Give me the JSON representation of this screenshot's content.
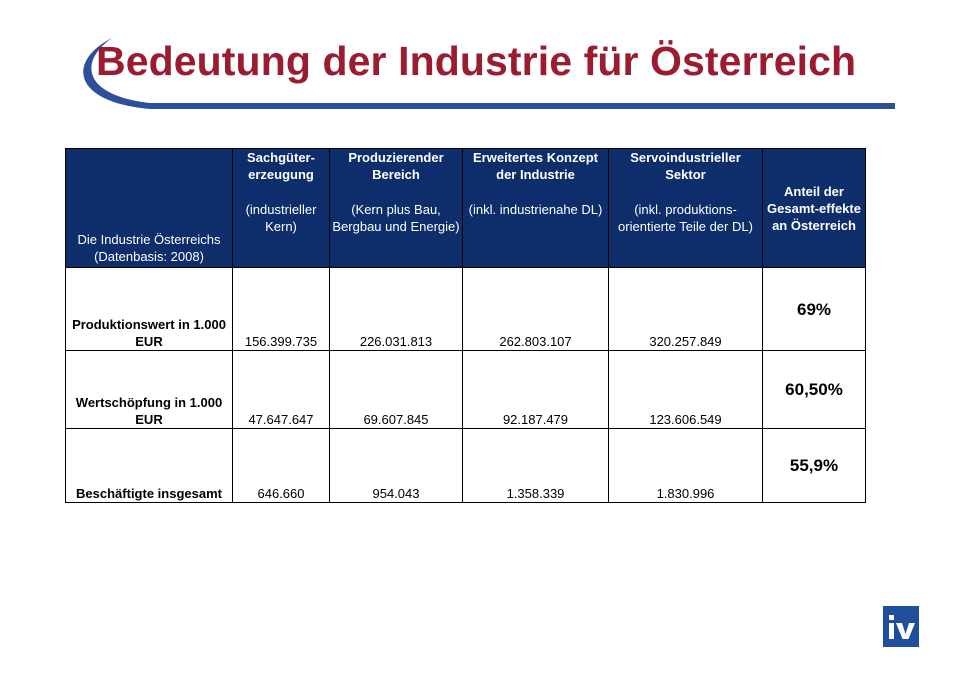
{
  "title": "Bedeutung der Industrie für Österreich",
  "colors": {
    "title": "#9b1c31",
    "header_bg": "#0d2d6b",
    "swoosh": "#2e4f9a",
    "logo_bg": "#1f4e9c"
  },
  "table": {
    "headers": [
      {
        "bold": "",
        "normal": "Die Industrie Österreichs (Datenbasis: 2008)"
      },
      {
        "bold": "Sachgüter-erzeugung",
        "normal": "(industrieller Kern)"
      },
      {
        "bold": "Produzierender Bereich",
        "normal": "(Kern plus Bau, Bergbau und Energie)"
      },
      {
        "bold": "Erweitertes Konzept der Industrie",
        "normal": "(inkl. industrienahe DL)"
      },
      {
        "bold": "Servoindustrieller Sektor",
        "normal": "(inkl. produktions-orientierte Teile der DL)"
      },
      {
        "bold": "Anteil der Gesamt-effekte an Österreich",
        "normal": ""
      }
    ],
    "rows": [
      {
        "label": "Produktionswert in 1.000 EUR",
        "values": [
          "156.399.735",
          "226.031.813",
          "262.803.107",
          "320.257.849"
        ],
        "share": "69%"
      },
      {
        "label": "Wertschöpfung in 1.000 EUR",
        "values": [
          "47.647.647",
          "69.607.845",
          "92.187.479",
          "123.606.549"
        ],
        "share": "60,50%"
      },
      {
        "label": "Beschäftigte insgesamt",
        "values": [
          "646.660",
          "954.043",
          "1.358.339",
          "1.830.996"
        ],
        "share": "55,9%"
      }
    ]
  },
  "logo": {
    "text": "iv",
    "icon": "iv-logo-icon"
  }
}
